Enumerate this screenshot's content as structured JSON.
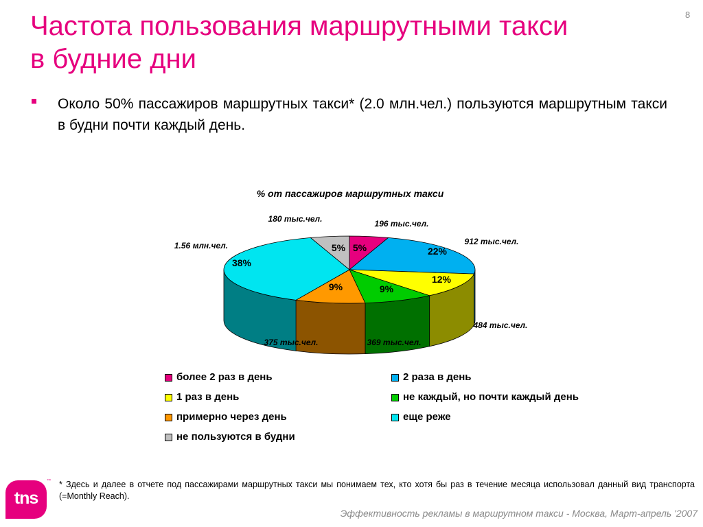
{
  "slide": {
    "page_number": "8",
    "title_line1": "Частота пользования маршрутными такси",
    "title_line2": "в будние дни",
    "bullet": "Около 50% пассажиров маршрутных такси* (2.0 млн.чел.) пользуются маршрутным такси в будни почти каждый день.",
    "footnote": "* Здесь и далее в отчете под пассажирами маршрутных такси мы понимаем тех, кто хотя бы раз в течение месяца использовал данный вид транспорта (=Monthly Reach).",
    "footer": "Эффективность рекламы в маршрутном такси - Москва, Март-апрель '2007",
    "logo_text": "tns",
    "logo_tm": "™"
  },
  "chart_data": {
    "type": "pie",
    "title": "% от пассажиров маршрутных такси",
    "series": [
      {
        "name": "более 2 раз в день",
        "value": 5,
        "label": "5%",
        "count": "196 тыс.чел.",
        "color": "#e6007e"
      },
      {
        "name": "2 раза в день",
        "value": 22,
        "label": "22%",
        "count": "912 тыс.чел.",
        "color": "#00b0f0"
      },
      {
        "name": "1 раз в день",
        "value": 12,
        "label": "12%",
        "count": "484 тыс.чел.",
        "color": "#ffff00"
      },
      {
        "name": "не каждый, но почти каждый день",
        "value": 9,
        "label": "9%",
        "count": "369 тыс.чел.",
        "color": "#00cc00"
      },
      {
        "name": "примерно через день",
        "value": 9,
        "label": "9%",
        "count": "375 тыс.чел.",
        "color": "#ff9900"
      },
      {
        "name": "еще реже",
        "value": 38,
        "label": "38%",
        "count": "1.56 млн.чел.",
        "color": "#00e5f0"
      },
      {
        "name": "не пользуются в будни",
        "value": 5,
        "label": "5%",
        "count": "180 тыс.чел.",
        "color": "#c0c0c0"
      }
    ],
    "legend": [
      "более 2 раз в день",
      "2 раза в день",
      "1 раз в день",
      "не каждый, но почти каждый день",
      "примерно через день",
      "еще реже",
      "не пользуются в будни"
    ]
  }
}
